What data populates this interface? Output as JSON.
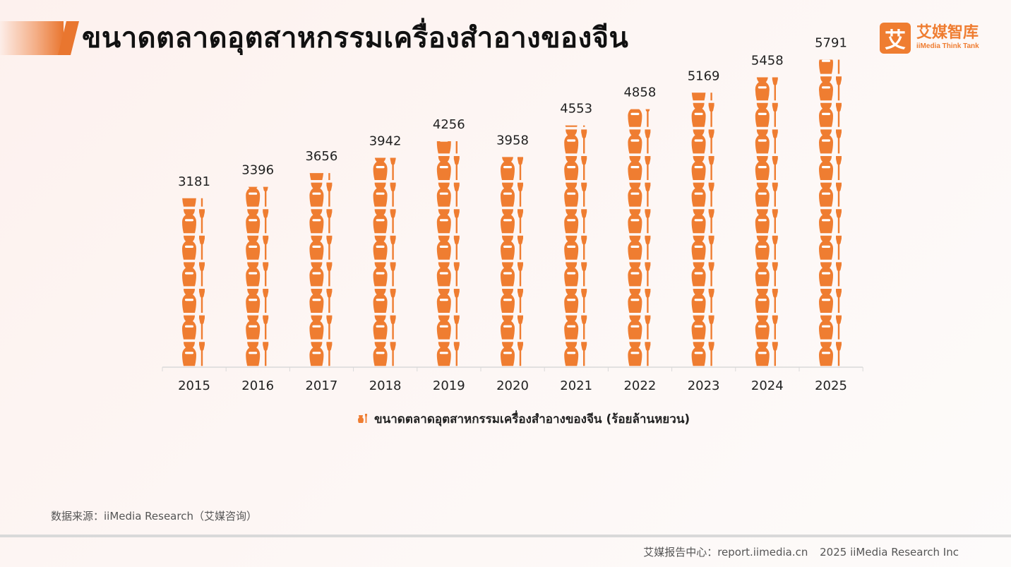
{
  "header": {
    "title": "ขนาดตลาดอุตสาหกรรมเครื่องสำอางของจีน"
  },
  "logo": {
    "mark": "艾",
    "name_cn": "艾媒智库",
    "name_en": "iiMedia Think Tank"
  },
  "chart_data": {
    "type": "bar",
    "categories": [
      "2015",
      "2016",
      "2017",
      "2018",
      "2019",
      "2020",
      "2021",
      "2022",
      "2023",
      "2024",
      "2025"
    ],
    "values": [
      3181,
      3396,
      3656,
      3942,
      4256,
      3958,
      4553,
      4858,
      5169,
      5458,
      5791
    ],
    "series_name": "ขนาดตลาดอุตสาหกรรมเครื่องสำอางของจีน (ร้อยล้านหยวน)",
    "unit_value": 500,
    "ylim": [
      0,
      6000
    ],
    "legend_position": "bottom-center",
    "grid": false,
    "bar_color": "#ef7d31"
  },
  "footer": {
    "source": "数据来源：iiMedia Research（艾媒咨询）",
    "report_center": "艾媒报告中心：report.iimedia.cn",
    "copyright": "2025 iiMedia Research Inc"
  }
}
